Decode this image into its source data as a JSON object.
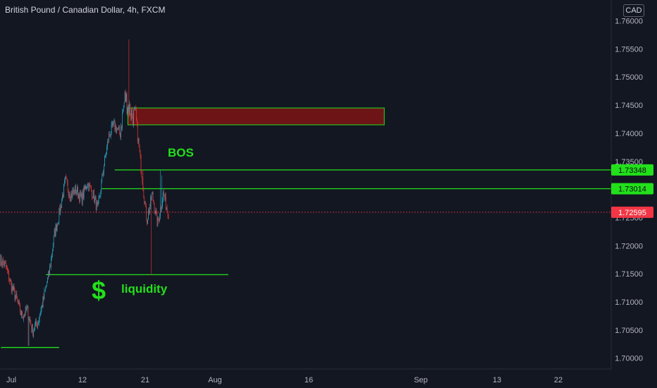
{
  "header": {
    "title": "British Pound / Canadian Dollar, 4h, FXCM",
    "currency": "CAD"
  },
  "colors": {
    "background": "#131722",
    "up": "#26a9c7",
    "down": "#e53935",
    "level": "#22e01a",
    "zone_fill": "#8c1414",
    "current_price": "#f23645"
  },
  "chart_data": {
    "type": "candlestick",
    "title": "British Pound / Canadian Dollar, 4h, FXCM",
    "xlabel": "",
    "ylabel": "",
    "x_ticks": [
      "Jul",
      "12",
      "21",
      "Aug",
      "16",
      "Sep",
      "13",
      "22"
    ],
    "y_ticks": [
      "1.76000",
      "1.75500",
      "1.75000",
      "1.74500",
      "1.74000",
      "1.73500",
      "1.72500",
      "1.72000",
      "1.71500",
      "1.71000",
      "1.70500",
      "1.70000"
    ],
    "ylim": [
      1.6983,
      1.7621
    ],
    "price_path": [
      [
        0,
        1.7175
      ],
      [
        2,
        1.7165
      ],
      [
        4,
        1.713
      ],
      [
        6,
        1.7105
      ],
      [
        8,
        1.7075
      ],
      [
        10,
        1.7085
      ],
      [
        12,
        1.7048
      ],
      [
        14,
        1.7065
      ],
      [
        16,
        1.7105
      ],
      [
        18,
        1.715
      ],
      [
        20,
        1.722
      ],
      [
        22,
        1.7262
      ],
      [
        24,
        1.7315
      ],
      [
        26,
        1.729
      ],
      [
        28,
        1.73
      ],
      [
        30,
        1.7282
      ],
      [
        32,
        1.7312
      ],
      [
        34,
        1.7295
      ],
      [
        36,
        1.7262
      ],
      [
        38,
        1.7335
      ],
      [
        40,
        1.7395
      ],
      [
        42,
        1.7415
      ],
      [
        44,
        1.74
      ],
      [
        46,
        1.7465
      ],
      [
        48,
        1.7438
      ],
      [
        50,
        1.7425
      ],
      [
        52,
        1.7335
      ],
      [
        54,
        1.7245
      ],
      [
        56,
        1.7292
      ],
      [
        58,
        1.7238
      ],
      [
        60,
        1.7292
      ],
      [
        62,
        1.7258
      ]
    ],
    "annotations": {
      "supply_zone": {
        "top": 1.7445,
        "bottom": 1.7415,
        "x_start": 48,
        "x_end": 145
      },
      "bos_level": {
        "value": 1.73348,
        "label": "1.73348",
        "text": "BOS",
        "x_start": 43
      },
      "second_level": {
        "value": 1.73014,
        "label": "1.73014",
        "x_start": 38
      },
      "liquidity_level": {
        "value": 1.71485,
        "text": "liquidity",
        "symbol": "$",
        "x_start": 17,
        "x_end": 86
      },
      "low_level": {
        "value": 1.7019,
        "x_start": 0,
        "x_end": 22
      },
      "current_price": {
        "value": 1.72595,
        "label": "1.72595"
      }
    }
  }
}
